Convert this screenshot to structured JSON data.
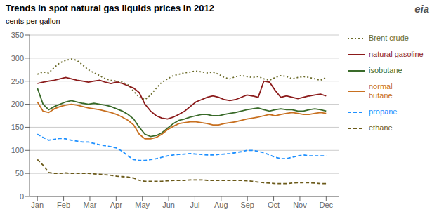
{
  "chart_data": {
    "type": "line",
    "title": "Trends in spot natural gas liquids prices in 2012",
    "ylabel": "cents per gallon",
    "annotations": [
      "eia"
    ],
    "x": [
      0,
      0.2157,
      0.4314,
      0.6471,
      0.8627,
      1.0784,
      1.2941,
      1.5098,
      1.7255,
      1.9412,
      2.1569,
      2.3725,
      2.5882,
      2.8039,
      3.0196,
      3.2353,
      3.451,
      3.6667,
      3.8824,
      4.098,
      4.3137,
      4.5294,
      4.7451,
      4.9608,
      5.1765,
      5.3922,
      5.6078,
      5.8235,
      6.0392,
      6.2549,
      6.4706,
      6.6863,
      6.902,
      7.1176,
      7.3333,
      7.549,
      7.7647,
      7.9804,
      8.1961,
      8.4118,
      8.6275,
      8.8431,
      9.0588,
      9.2745,
      9.4902,
      9.7059,
      9.9216,
      10.1373,
      10.3529,
      10.5686,
      10.7843,
      11
    ],
    "xlim": [
      -0.3,
      11.5
    ],
    "xticks": [
      {
        "value": 0,
        "label": "Jan"
      },
      {
        "value": 1,
        "label": "Feb"
      },
      {
        "value": 2,
        "label": "Mar"
      },
      {
        "value": 3,
        "label": "Apr"
      },
      {
        "value": 4,
        "label": "May"
      },
      {
        "value": 5,
        "label": "Jun"
      },
      {
        "value": 6,
        "label": "Jul"
      },
      {
        "value": 7,
        "label": "Aug"
      },
      {
        "value": 8,
        "label": "Sep"
      },
      {
        "value": 9,
        "label": "Oct"
      },
      {
        "value": 10,
        "label": "Nov"
      },
      {
        "value": 11,
        "label": "Dec"
      }
    ],
    "ylim": [
      0,
      350
    ],
    "yticks": [
      0,
      50,
      100,
      150,
      200,
      250,
      300,
      350
    ],
    "grid": true,
    "legend": "right",
    "series": [
      {
        "name": "Brent crude",
        "color": "#6b6b2a",
        "line_style": "dotted",
        "values": [
          265,
          270,
          268,
          280,
          290,
          295,
          298,
          295,
          285,
          275,
          268,
          262,
          255,
          252,
          250,
          248,
          242,
          228,
          215,
          210,
          220,
          235,
          248,
          255,
          262,
          265,
          268,
          270,
          272,
          270,
          268,
          270,
          265,
          258,
          255,
          260,
          262,
          260,
          258,
          260,
          255,
          252,
          258,
          262,
          260,
          255,
          258,
          260,
          258,
          255,
          252,
          258
        ]
      },
      {
        "name": "natural gasoline",
        "color": "#8b1a1a",
        "line_style": "solid",
        "values": [
          245,
          248,
          250,
          252,
          255,
          258,
          255,
          252,
          250,
          248,
          250,
          252,
          248,
          245,
          248,
          245,
          240,
          235,
          225,
          200,
          185,
          175,
          170,
          168,
          172,
          178,
          185,
          195,
          205,
          210,
          215,
          218,
          215,
          210,
          208,
          210,
          215,
          220,
          218,
          215,
          250,
          248,
          230,
          215,
          218,
          215,
          212,
          215,
          218,
          220,
          222,
          218
        ]
      },
      {
        "name": "isobutane",
        "color": "#3a6b2a",
        "line_style": "solid",
        "values": [
          235,
          200,
          188,
          195,
          200,
          205,
          208,
          205,
          202,
          200,
          202,
          200,
          198,
          195,
          190,
          185,
          178,
          168,
          150,
          135,
          130,
          132,
          138,
          148,
          158,
          165,
          168,
          172,
          175,
          178,
          178,
          175,
          175,
          178,
          180,
          182,
          185,
          188,
          190,
          192,
          188,
          185,
          188,
          190,
          188,
          188,
          185,
          185,
          188,
          190,
          188,
          185
        ]
      },
      {
        "name": "normal\nbutane",
        "color": "#c87020",
        "line_style": "solid",
        "values": [
          205,
          185,
          182,
          190,
          195,
          198,
          200,
          198,
          195,
          192,
          190,
          188,
          185,
          182,
          178,
          172,
          165,
          155,
          135,
          125,
          125,
          128,
          135,
          145,
          152,
          158,
          160,
          162,
          162,
          160,
          158,
          155,
          155,
          158,
          160,
          162,
          165,
          168,
          170,
          172,
          175,
          178,
          175,
          178,
          180,
          182,
          180,
          178,
          178,
          180,
          182,
          180
        ]
      },
      {
        "name": "propane",
        "color": "#1e90ff",
        "line_style": "dashed",
        "values": [
          135,
          128,
          122,
          124,
          126,
          125,
          122,
          120,
          118,
          118,
          115,
          112,
          110,
          108,
          105,
          98,
          88,
          80,
          78,
          78,
          80,
          82,
          85,
          88,
          90,
          91,
          92,
          93,
          92,
          91,
          90,
          90,
          91,
          92,
          93,
          95,
          97,
          100,
          100,
          98,
          95,
          90,
          85,
          82,
          82,
          85,
          88,
          90,
          88,
          88,
          88,
          88
        ]
      },
      {
        "name": "ethane",
        "color": "#6b5a1a",
        "line_style": "dashed",
        "values": [
          80,
          68,
          52,
          50,
          50,
          51,
          50,
          50,
          50,
          50,
          49,
          48,
          47,
          46,
          44,
          43,
          42,
          40,
          35,
          33,
          33,
          33,
          33,
          34,
          35,
          35,
          35,
          36,
          36,
          36,
          35,
          35,
          35,
          35,
          35,
          35,
          35,
          34,
          33,
          31,
          30,
          29,
          28,
          28,
          28,
          29,
          30,
          30,
          30,
          29,
          28,
          28
        ]
      }
    ]
  }
}
